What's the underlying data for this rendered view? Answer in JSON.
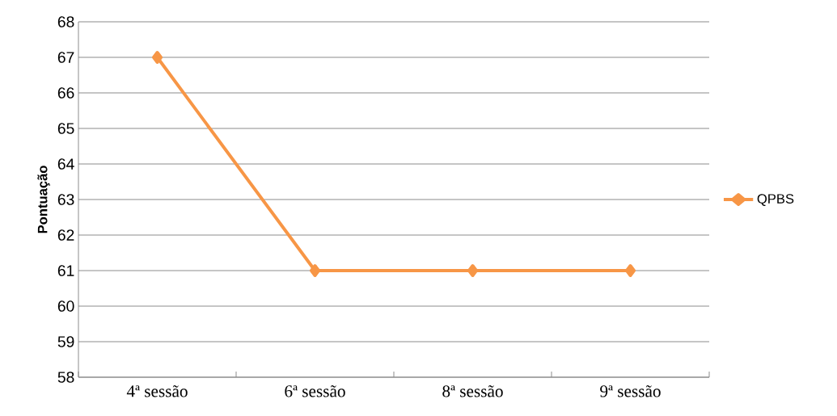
{
  "chart_data": {
    "type": "line",
    "ylabel": "Pontuação",
    "categories": [
      "4ª sessão",
      "6ª sessão",
      "8ª sessão",
      "9ª sessão"
    ],
    "series": [
      {
        "name": "QPBS",
        "color": "#f79646",
        "values": [
          67,
          61,
          61,
          61
        ]
      }
    ],
    "ylim": [
      58,
      68
    ],
    "yticks": [
      58,
      59,
      60,
      61,
      62,
      63,
      64,
      65,
      66,
      67,
      68
    ],
    "grid": "y",
    "legend": "right",
    "marker": "diamond"
  }
}
